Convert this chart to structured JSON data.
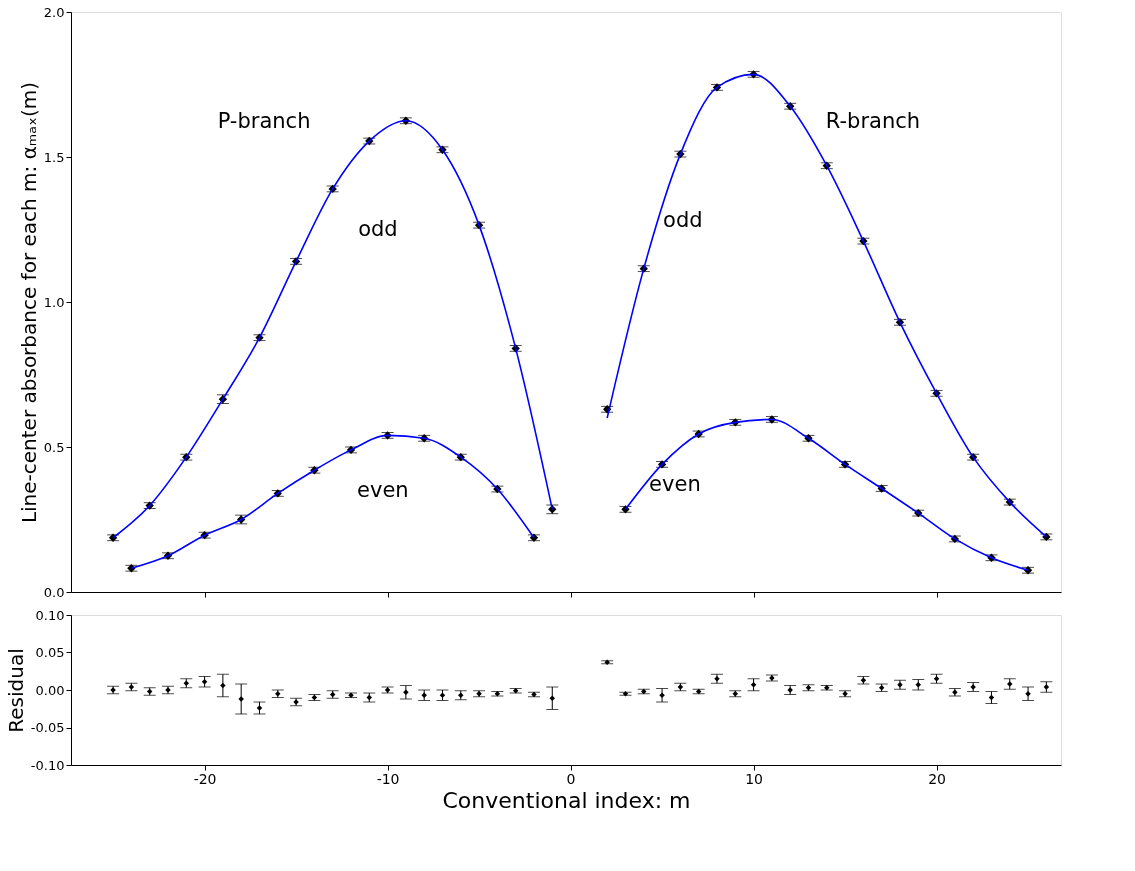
{
  "chart_data": [
    {
      "type": "scatter",
      "ylabel": "Line-center absorbance for each m: αₘₐₓ(m)",
      "xlim": [
        -27.3,
        26.8
      ],
      "ylim": [
        0,
        2
      ],
      "xticks": [
        -20,
        -10,
        0,
        10,
        20
      ],
      "yticks": [
        {
          "value": 0,
          "label": "0.0"
        },
        0.5,
        {
          "value": 1,
          "label": "1.0"
        },
        1.5,
        {
          "value": 2,
          "label": "2.0"
        }
      ],
      "tick_labels": "y",
      "grid": false,
      "marker": "diamond",
      "annotations": [
        "P-branch",
        "odd",
        "even",
        "R-branch",
        "odd",
        "even"
      ],
      "series": [
        {
          "color": "#000000",
          "x": [
            -25,
            -23,
            -21,
            -19,
            -17,
            -15,
            -13,
            -11,
            -9,
            -7,
            -5,
            -3,
            -1
          ],
          "values": [
            0.187,
            0.298,
            0.465,
            0.665,
            0.877,
            1.14,
            1.39,
            1.555,
            1.625,
            1.525,
            1.265,
            0.84,
            0.285
          ],
          "errors": [
            0.01,
            0.01,
            0.01,
            0.015,
            0.01,
            0.01,
            0.01,
            0.01,
            0.01,
            0.01,
            0.01,
            0.01,
            0.015
          ]
        },
        {
          "color": "#000000",
          "x": [
            -24,
            -22,
            -20,
            -18,
            -16,
            -14,
            -12,
            -10,
            -8,
            -6,
            -4,
            -2
          ],
          "values": [
            0.082,
            0.125,
            0.196,
            0.25,
            0.34,
            0.42,
            0.49,
            0.54,
            0.53,
            0.465,
            0.355,
            0.187
          ],
          "errors": [
            0.01,
            0.01,
            0.01,
            0.015,
            0.01,
            0.01,
            0.01,
            0.01,
            0.01,
            0.01,
            0.01,
            0.01
          ]
        },
        {
          "color": "#000000",
          "x": [
            2,
            4,
            6,
            8,
            10,
            12,
            14,
            16,
            18,
            20,
            22,
            24,
            26
          ],
          "values": [
            0.63,
            1.115,
            1.51,
            1.74,
            1.785,
            1.675,
            1.47,
            1.21,
            0.93,
            0.685,
            0.465,
            0.31,
            0.19
          ],
          "errors": [
            0.01,
            0.01,
            0.01,
            0.01,
            0.01,
            0.01,
            0.01,
            0.01,
            0.01,
            0.01,
            0.01,
            0.01,
            0.01
          ]
        },
        {
          "color": "#000000",
          "x": [
            3,
            5,
            7,
            9,
            11,
            13,
            15,
            17,
            19,
            21,
            23,
            25
          ],
          "values": [
            0.285,
            0.44,
            0.545,
            0.585,
            0.595,
            0.53,
            0.44,
            0.357,
            0.272,
            0.183,
            0.118,
            0.075
          ],
          "errors": [
            0.01,
            0.01,
            0.01,
            0.01,
            0.01,
            0.01,
            0.01,
            0.01,
            0.01,
            0.01,
            0.01,
            0.01
          ]
        },
        {
          "type": "line",
          "marker": "none",
          "color": "#0000ff",
          "x": [
            -25,
            -23,
            -21,
            -19,
            -17,
            -15,
            -13,
            -11,
            -9,
            -7,
            -5,
            -3,
            -1
          ],
          "values": [
            0.187,
            0.298,
            0.465,
            0.665,
            0.877,
            1.14,
            1.39,
            1.555,
            1.625,
            1.525,
            1.265,
            0.84,
            0.285
          ]
        },
        {
          "type": "line",
          "marker": "none",
          "color": "#0000ff",
          "x": [
            -24,
            -22,
            -20,
            -18,
            -16,
            -14,
            -12,
            -10,
            -8,
            -6,
            -4,
            -2
          ],
          "values": [
            0.082,
            0.125,
            0.196,
            0.25,
            0.34,
            0.42,
            0.49,
            0.54,
            0.53,
            0.465,
            0.355,
            0.187
          ]
        },
        {
          "type": "line",
          "marker": "none",
          "color": "#0000ff",
          "x": [
            2,
            4,
            6,
            8,
            10,
            12,
            14,
            16,
            18,
            20,
            22,
            24,
            26
          ],
          "values": [
            0.6,
            1.115,
            1.51,
            1.74,
            1.785,
            1.675,
            1.47,
            1.21,
            0.93,
            0.685,
            0.465,
            0.31,
            0.19
          ]
        },
        {
          "type": "line",
          "marker": "none",
          "color": "#0000ff",
          "x": [
            3,
            5,
            7,
            9,
            11,
            13,
            15,
            17,
            19,
            21,
            23,
            25
          ],
          "values": [
            0.285,
            0.44,
            0.545,
            0.585,
            0.595,
            0.53,
            0.44,
            0.357,
            0.272,
            0.183,
            0.118,
            0.075
          ]
        }
      ]
    },
    {
      "type": "scatter",
      "xlabel": "Conventional index: m",
      "ylabel": "Residual",
      "xlim": [
        -27.3,
        26.8
      ],
      "ylim": [
        -0.1,
        0.1
      ],
      "xticks": [
        -20,
        -10,
        0,
        10,
        20
      ],
      "yticks": [
        {
          "value": -0.1,
          "label": "-0.10"
        },
        {
          "value": -0.05,
          "label": "-0.05"
        },
        {
          "value": 0,
          "label": "0.00"
        },
        0.05,
        {
          "value": 0.1,
          "label": "0.10"
        }
      ],
      "grid": false,
      "marker": "diamond",
      "series": [
        {
          "color": "#000000",
          "x": [
            -25,
            -24,
            -23,
            -22,
            -21,
            -20,
            -19,
            -18,
            -17,
            -16,
            -15,
            -14,
            -13,
            -12,
            -11,
            -10,
            -9,
            -8,
            -7,
            -6,
            -5,
            -4,
            -3,
            -2,
            -1,
            2,
            3,
            4,
            5,
            6,
            7,
            8,
            9,
            10,
            11,
            12,
            13,
            14,
            15,
            16,
            17,
            18,
            19,
            20,
            21,
            22,
            23,
            24,
            25,
            26
          ],
          "values": [
            0.0,
            0.004,
            -0.002,
            0.0,
            0.009,
            0.011,
            0.006,
            -0.012,
            -0.024,
            -0.005,
            -0.016,
            -0.01,
            -0.006,
            -0.007,
            -0.01,
            0.0,
            -0.003,
            -0.007,
            -0.007,
            -0.007,
            -0.005,
            -0.005,
            -0.001,
            -0.006,
            -0.011,
            0.037,
            -0.005,
            -0.002,
            -0.007,
            0.004,
            -0.002,
            0.015,
            -0.005,
            0.007,
            0.016,
            0.0,
            0.003,
            0.003,
            -0.005,
            0.013,
            0.003,
            0.007,
            0.007,
            0.015,
            -0.003,
            0.004,
            -0.01,
            0.008,
            -0.005,
            0.004
          ],
          "errors": [
            0.005,
            0.005,
            0.005,
            0.005,
            0.006,
            0.007,
            0.015,
            0.02,
            0.008,
            0.005,
            0.005,
            0.004,
            0.005,
            0.003,
            0.006,
            0.004,
            0.009,
            0.007,
            0.007,
            0.006,
            0.004,
            0.003,
            0.003,
            0.003,
            0.015,
            0.002,
            0.002,
            0.003,
            0.009,
            0.005,
            0.003,
            0.006,
            0.004,
            0.008,
            0.004,
            0.006,
            0.004,
            0.003,
            0.004,
            0.005,
            0.005,
            0.006,
            0.007,
            0.006,
            0.005,
            0.006,
            0.008,
            0.007,
            0.009,
            0.007
          ]
        }
      ]
    }
  ]
}
